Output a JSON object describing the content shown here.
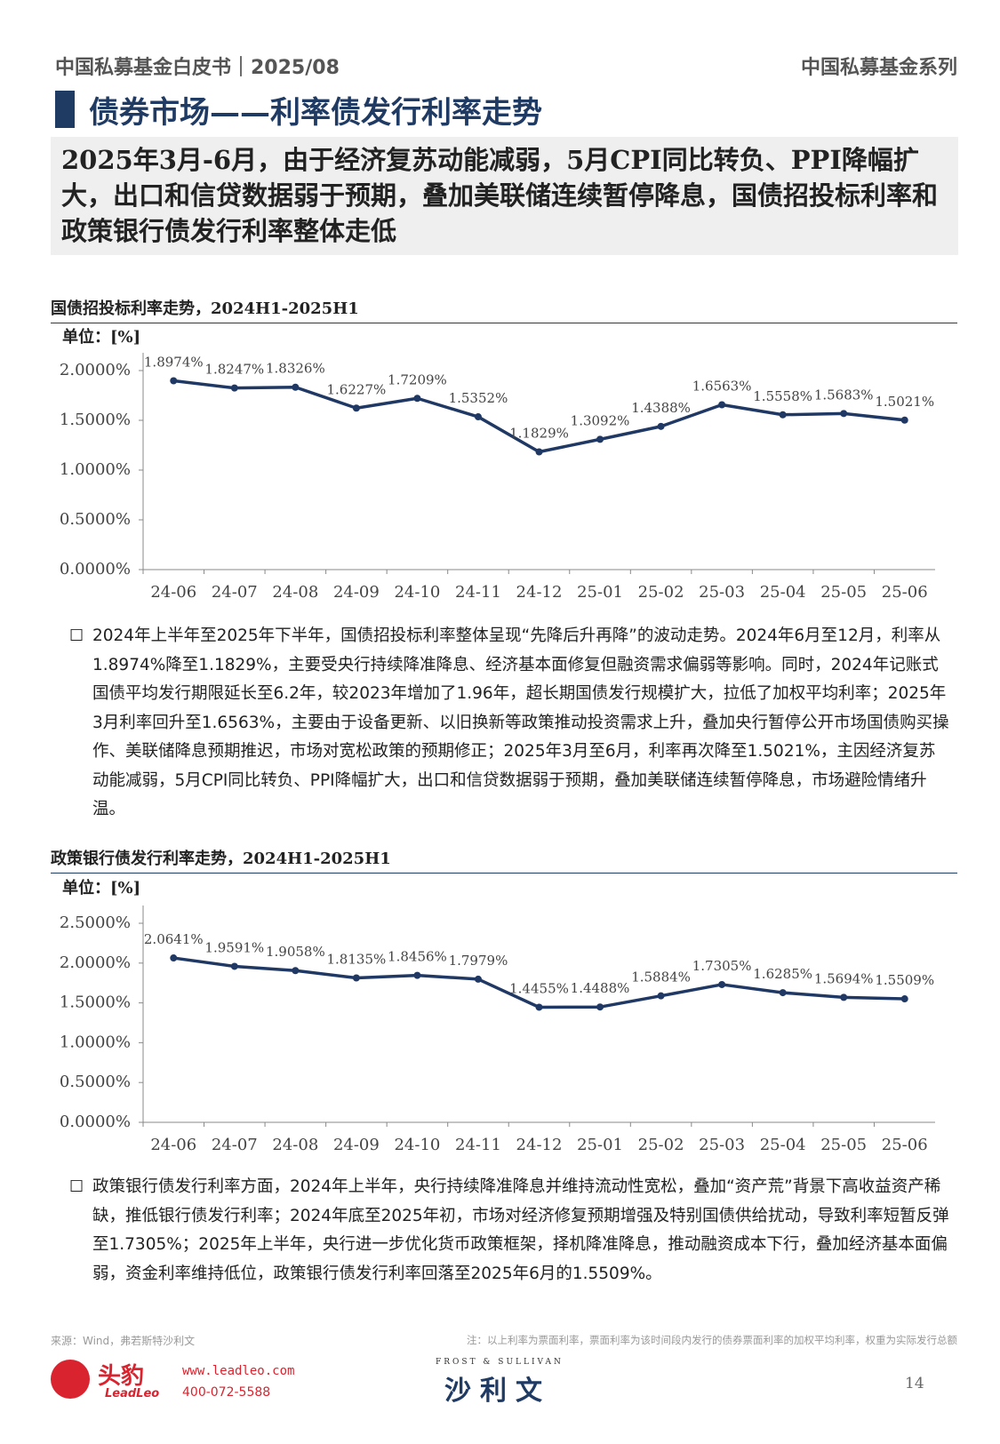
{
  "header": {
    "left": "中国私募基金白皮书｜2025/08",
    "right": "中国私募基金系列"
  },
  "section_title": "债券市场——利率债发行利率走势",
  "summary": "2025年3月-6月，由于经济复苏动能减弱，5月CPI同比转负、PPI降幅扩大，出口和信贷数据弱于预期，叠加美联储连续暂停降息，国债招投标利率和政策银行债发行利率整体走低",
  "chart_data": [
    {
      "type": "line",
      "title": "国债招投标利率走势，2024H1-2025H1",
      "unit": "单位：[%]",
      "categories": [
        "24-06",
        "24-07",
        "24-08",
        "24-09",
        "24-10",
        "24-11",
        "24-12",
        "25-01",
        "25-02",
        "25-03",
        "25-04",
        "25-05",
        "25-06"
      ],
      "values": [
        1.8974,
        1.8247,
        1.8326,
        1.6227,
        1.7209,
        1.5352,
        1.1829,
        1.3092,
        1.4388,
        1.6563,
        1.5558,
        1.5683,
        1.5021
      ],
      "value_labels": [
        "1.8974%",
        "1.8247%",
        "1.8326%",
        "1.6227%",
        "1.7209%",
        "1.5352%",
        "1.1829%",
        "1.3092%",
        "1.4388%",
        "1.6563%",
        "1.5558%",
        "1.5683%",
        "1.5021%"
      ],
      "color": "#203864",
      "ylim": [
        0,
        2
      ],
      "yticks": [
        {
          "value": 0,
          "label": "0.0000%"
        },
        {
          "value": 0.5,
          "label": "0.5000%"
        },
        {
          "value": 1,
          "label": "1.0000%"
        },
        {
          "value": 1.5,
          "label": "1.5000%"
        },
        {
          "value": 2,
          "label": "2.0000%"
        }
      ]
    },
    {
      "type": "line",
      "title": "政策银行债发行利率走势，2024H1-2025H1",
      "unit": "单位：[%]",
      "categories": [
        "24-06",
        "24-07",
        "24-08",
        "24-09",
        "24-10",
        "24-11",
        "24-12",
        "25-01",
        "25-02",
        "25-03",
        "25-04",
        "25-05",
        "25-06"
      ],
      "values": [
        2.0641,
        1.9591,
        1.9058,
        1.8135,
        1.8456,
        1.7979,
        1.4455,
        1.4488,
        1.5884,
        1.7305,
        1.6285,
        1.5694,
        1.5509
      ],
      "value_labels": [
        "2.0641%",
        "1.9591%",
        "1.9058%",
        "1.8135%",
        "1.8456%",
        "1.7979%",
        "1.4455%",
        "1.4488%",
        "1.5884%",
        "1.7305%",
        "1.6285%",
        "1.5694%",
        "1.5509%"
      ],
      "color": "#203864",
      "ylim": [
        0,
        2.5
      ],
      "yticks": [
        {
          "value": 0,
          "label": "0.0000%"
        },
        {
          "value": 0.5,
          "label": "0.5000%"
        },
        {
          "value": 1,
          "label": "1.0000%"
        },
        {
          "value": 1.5,
          "label": "1.5000%"
        },
        {
          "value": 2,
          "label": "2.0000%"
        },
        {
          "value": 2.5,
          "label": "2.5000%"
        }
      ]
    }
  ],
  "paragraphs": [
    "2024年上半年至2025年下半年，国债招投标利率整体呈现“先降后升再降”的波动走势。2024年6月至12月，利率从1.8974%降至1.1829%，主要受央行持续降准降息、经济基本面修复但融资需求偏弱等影响。同时，2024年记账式国债平均发行期限延长至6.2年，较2023年增加了1.96年，超长期国债发行规模扩大，拉低了加权平均利率；2025年3月利率回升至1.6563%，主要由于设备更新、以旧换新等政策推动投资需求上升，叠加央行暂停公开市场国债购买操作、美联储降息预期推迟，市场对宽松政策的预期修正；2025年3月至6月，利率再次降至1.5021%，主因经济复苏动能减弱，5月CPI同比转负、PPI降幅扩大，出口和信贷数据弱于预期，叠加美联储连续暂停降息，市场避险情绪升温。",
    "政策银行债发行利率方面，2024年上半年，央行持续降准降息并维持流动性宽松，叠加“资产荒”背景下高收益资产稀缺，推低银行债发行利率；2024年底至2025年初，市场对经济修复预期增强及特别国债供给扰动，导致利率短暂反弹至1.7305%；2025年上半年，央行进一步优化货币政策框架，择机降准降息，推动融资成本下行，叠加经济基本面偏弱，资金利率维持低位，政策银行债发行利率回落至2025年6月的1.5509%。"
  ],
  "footer": {
    "source": "来源：Wind，弗若斯特沙利文",
    "note": "注：以上利率为票面利率，票面利率为该时间段内发行的债券票面利率的加权平均利率，权重为实际发行总额",
    "logo": "头豹",
    "logo_sub": "LeadLeo",
    "website": "www.leadleo.com",
    "phone": "400-072-5588",
    "brand_en": "FROST & SULLIVAN",
    "brand": "沙利文",
    "page": "14"
  }
}
